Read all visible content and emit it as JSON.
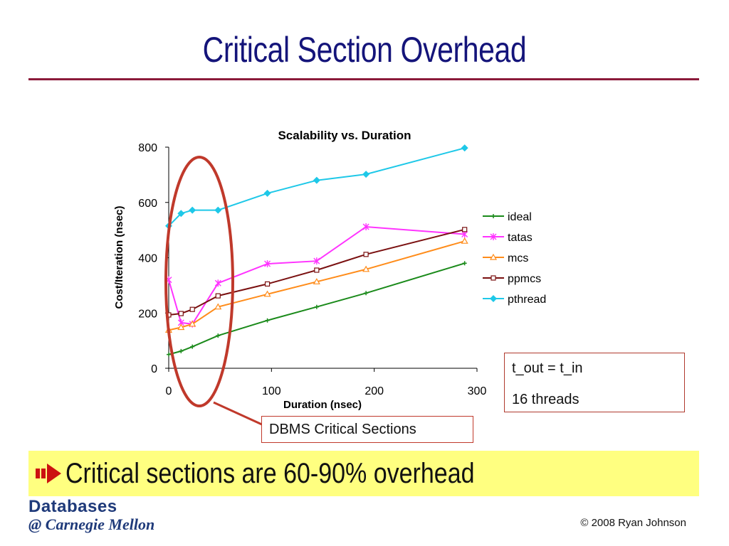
{
  "slide": {
    "title": "Critical Section Overhead",
    "bullet": "Critical sections are 60-90% overhead",
    "copyright": "© 2008 Ryan Johnson",
    "logo_line1": "Databases",
    "logo_line2": "@ Carnegie Mellon"
  },
  "note_box": {
    "line1": "t_out = t_in",
    "line2": "16 threads"
  },
  "callout": {
    "label": "DBMS Critical Sections"
  },
  "colors": {
    "title": "#14147a",
    "rule": "#8b1a3a",
    "highlight": "#ffff80",
    "ellipse": "#c0392b"
  },
  "chart_data": {
    "type": "line",
    "title": "Scalability vs. Duration",
    "xlabel": "Duration (nsec)",
    "ylabel": "Cost/Iteration (nsec)",
    "xlim": [
      0,
      300
    ],
    "ylim": [
      0,
      800
    ],
    "xticks": [
      0,
      100,
      200,
      300
    ],
    "yticks": [
      0,
      200,
      400,
      600,
      800
    ],
    "grid": false,
    "legend": "right",
    "series": [
      {
        "name": "ideal",
        "color": "#1a8a1a",
        "marker": "plus",
        "x": [
          0,
          12,
          23,
          48,
          96,
          144,
          192,
          288
        ],
        "y": [
          50,
          62,
          78,
          118,
          173,
          222,
          272,
          380
        ]
      },
      {
        "name": "tatas",
        "color": "#ff33ff",
        "marker": "star",
        "x": [
          0,
          12,
          23,
          48,
          96,
          144,
          192,
          288
        ],
        "y": [
          320,
          165,
          160,
          308,
          378,
          388,
          512,
          485
        ]
      },
      {
        "name": "mcs",
        "color": "#ff8c1a",
        "marker": "triangle",
        "x": [
          0,
          12,
          23,
          48,
          96,
          144,
          192,
          288
        ],
        "y": [
          138,
          148,
          160,
          222,
          268,
          313,
          358,
          460
        ]
      },
      {
        "name": "ppmcs",
        "color": "#7a1010",
        "marker": "square",
        "x": [
          0,
          12,
          23,
          48,
          96,
          144,
          192,
          288
        ],
        "y": [
          193,
          198,
          213,
          262,
          305,
          355,
          412,
          502
        ]
      },
      {
        "name": "pthread",
        "color": "#1ec8e8",
        "marker": "diamond",
        "x": [
          0,
          12,
          23,
          48,
          96,
          144,
          192,
          288
        ],
        "y": [
          515,
          560,
          572,
          572,
          633,
          680,
          702,
          797
        ]
      }
    ]
  }
}
